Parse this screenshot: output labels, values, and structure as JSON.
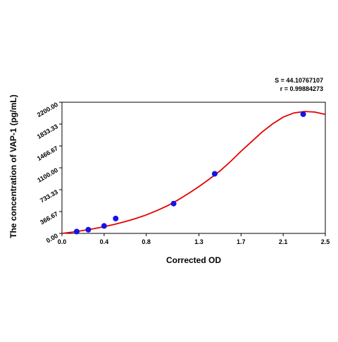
{
  "chart_data": {
    "type": "scatter",
    "title": "",
    "xlabel": "Corrected OD",
    "ylabel": "The concentration of VAP-1 (pg/mL)",
    "xlim": [
      0.0,
      2.5
    ],
    "ylim": [
      0.0,
      2200.0
    ],
    "x_ticks": [
      "0.0",
      "0.4",
      "0.8",
      "1.3",
      "1.7",
      "2.1",
      "2.5"
    ],
    "x_tick_values": [
      0.0,
      0.4,
      0.8,
      1.3,
      1.7,
      2.1,
      2.5
    ],
    "y_ticks": [
      "0.00",
      "366.67",
      "733.33",
      "1100.00",
      "1466.67",
      "1833.33",
      "2200.00"
    ],
    "y_tick_values": [
      0.0,
      366.67,
      733.33,
      1100.0,
      1466.67,
      1833.33,
      2200.0
    ],
    "grid": false,
    "annotations": {
      "s_value": "S = 44.10767107",
      "r_value": "r = 0.99884273"
    },
    "series": [
      {
        "kind": "points",
        "color": "#1414e6",
        "x": [
          0.14,
          0.25,
          0.4,
          0.51,
          1.06,
          1.45,
          2.29
        ],
        "y": [
          31,
          62,
          125,
          250,
          500,
          1000,
          2000
        ]
      },
      {
        "kind": "fit-curve",
        "color": "#e60000",
        "x": [
          0.0,
          0.1,
          0.2,
          0.3,
          0.4,
          0.5,
          0.6,
          0.7,
          0.8,
          0.9,
          1.0,
          1.1,
          1.2,
          1.3,
          1.4,
          1.5,
          1.6,
          1.7,
          1.8,
          1.9,
          2.0,
          2.1,
          2.2,
          2.3,
          2.4,
          2.5
        ],
        "y": [
          0,
          22,
          48,
          78,
          112,
          153,
          199,
          250,
          310,
          382,
          462,
          560,
          668,
          785,
          912,
          1048,
          1206,
          1378,
          1540,
          1700,
          1838,
          1950,
          2020,
          2045,
          2035,
          1995
        ]
      }
    ]
  }
}
